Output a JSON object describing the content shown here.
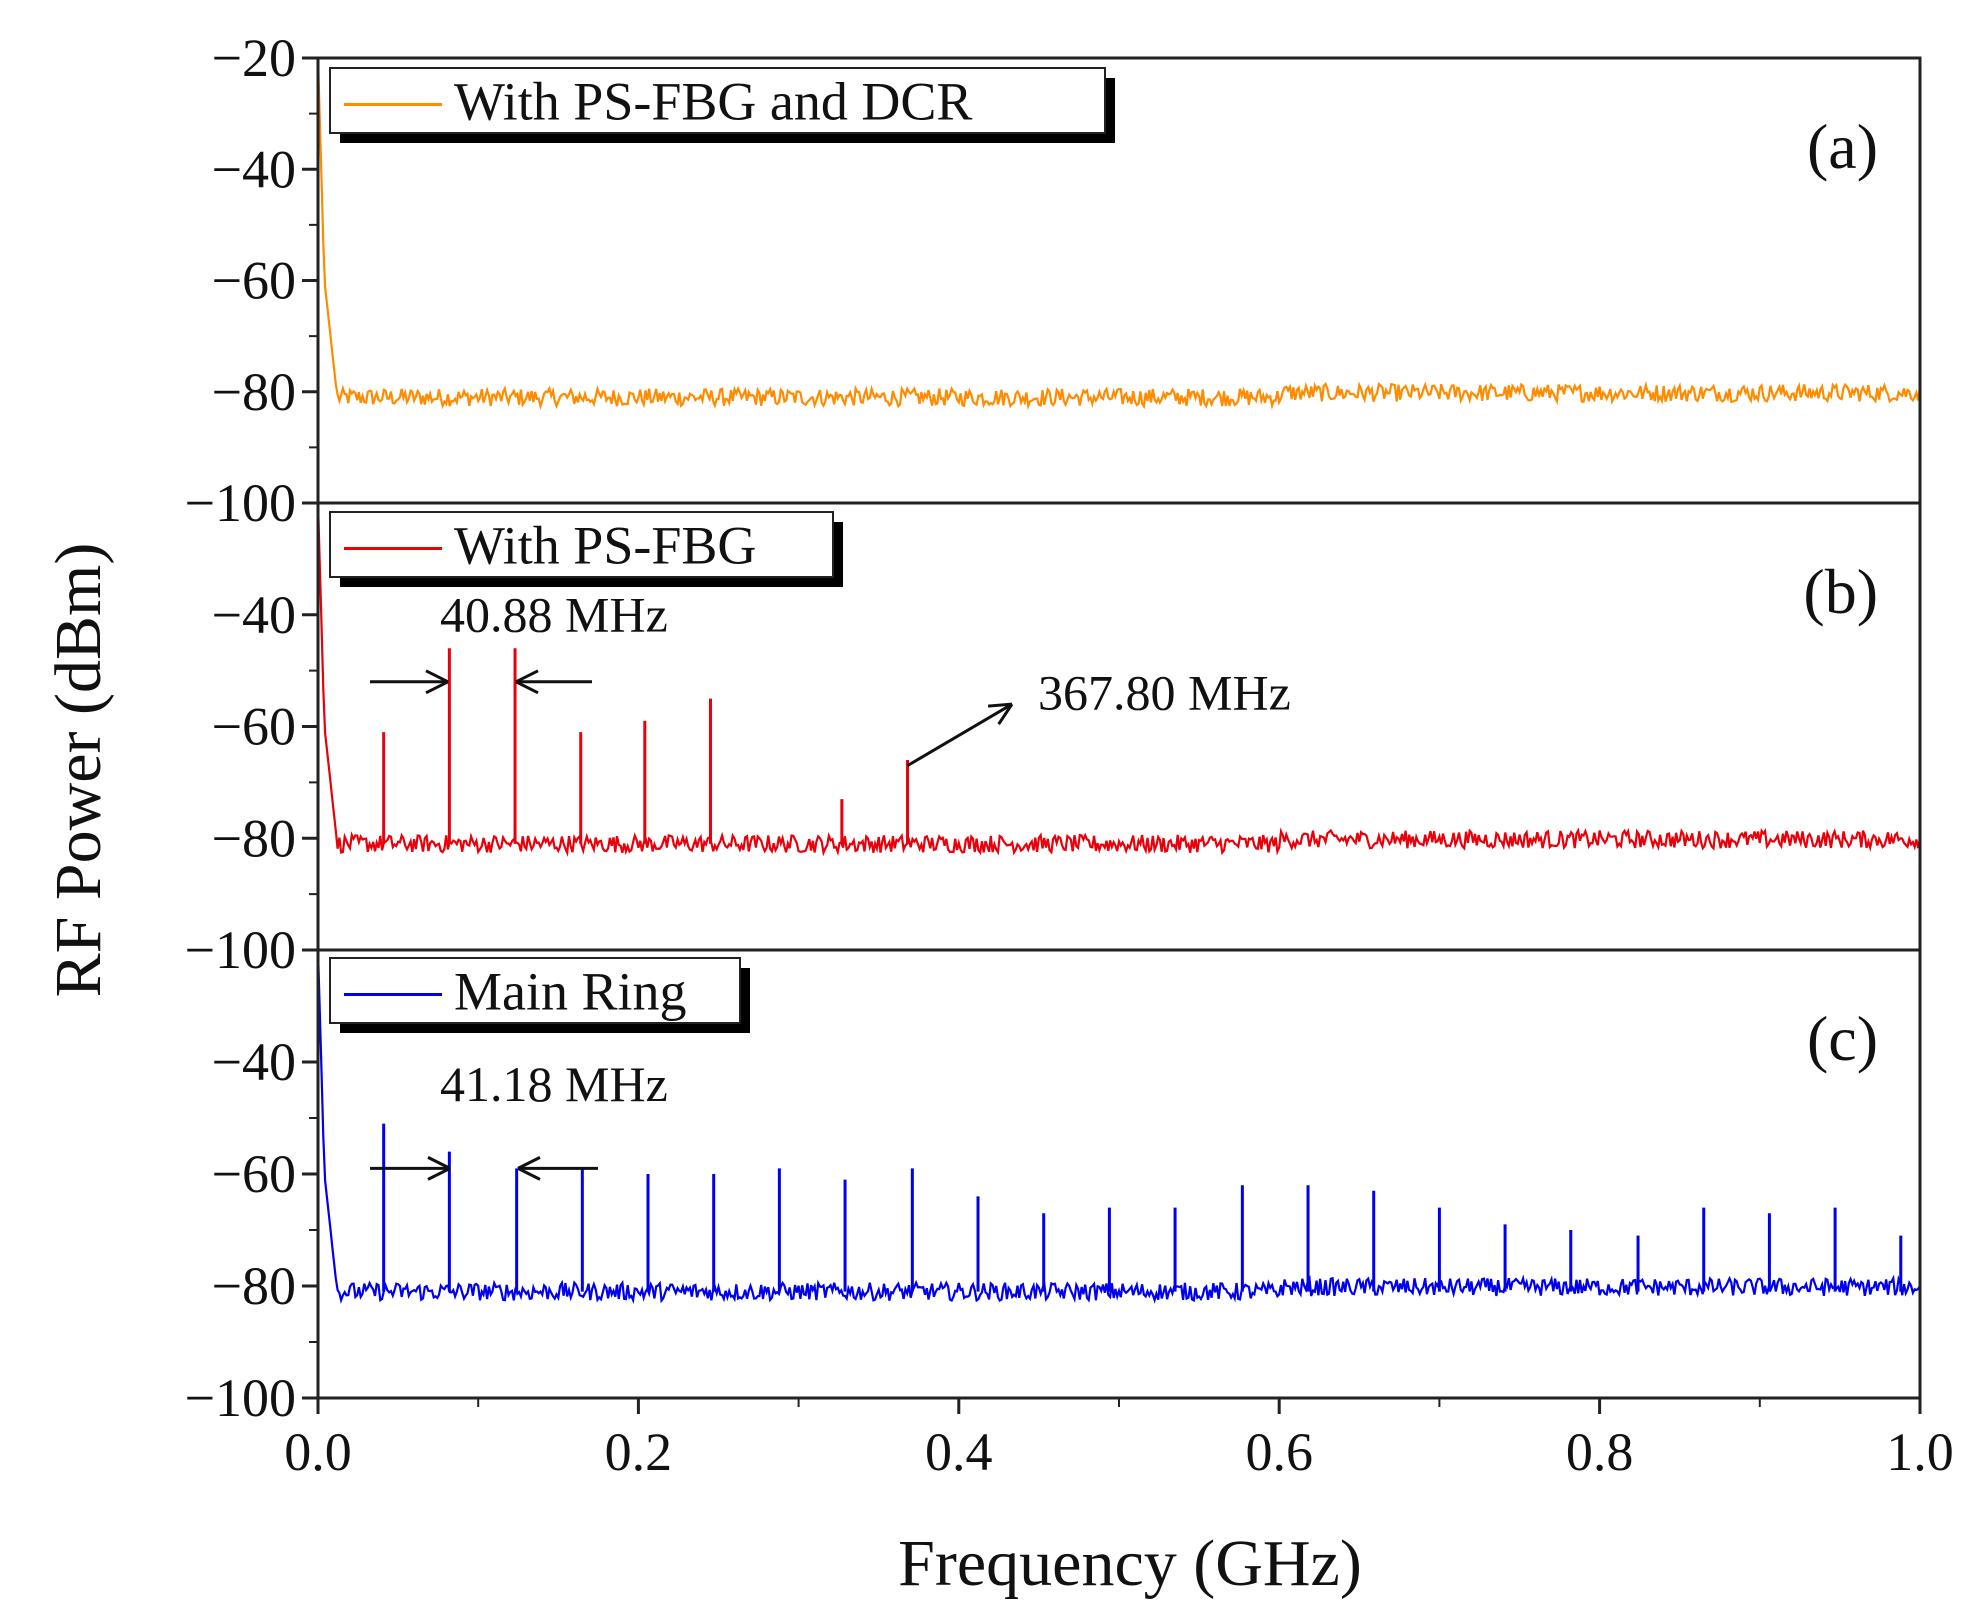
{
  "chart_data": {
    "type": "line",
    "xlabel": "Frequency (GHz)",
    "ylabel": "RF Power (dBm)",
    "xlim": [
      0,
      1.0
    ],
    "x_ticks": [
      "0.0",
      "0.2",
      "0.4",
      "0.6",
      "0.8",
      "1.0"
    ],
    "panels": [
      {
        "tag": "(a)",
        "ylim": [
          -100,
          -20
        ],
        "y_ticks": [
          "−20",
          "−40",
          "−60",
          "−80",
          "−100"
        ],
        "y_tick_values": [
          -20,
          -40,
          -60,
          -80,
          -100
        ],
        "series": [
          {
            "name": "With PS-FBG and DCR",
            "color": "#ff8c00",
            "noise_floor": -81,
            "peaks": []
          }
        ],
        "annotations": []
      },
      {
        "tag": "(b)",
        "ylim": [
          -100,
          -20
        ],
        "y_ticks": [
          "−40",
          "−60",
          "−80",
          "−100"
        ],
        "y_tick_values": [
          -40,
          -60,
          -80,
          -100
        ],
        "series": [
          {
            "name": "With PS-FBG",
            "color": "#e8000b",
            "noise_floor": -81,
            "peaks": [
              {
                "x": 0.041,
                "y": -61
              },
              {
                "x": 0.082,
                "y": -46
              },
              {
                "x": 0.123,
                "y": -46
              },
              {
                "x": 0.164,
                "y": -61
              },
              {
                "x": 0.204,
                "y": -59
              },
              {
                "x": 0.245,
                "y": -55
              },
              {
                "x": 0.327,
                "y": -73
              },
              {
                "x": 0.368,
                "y": -66
              }
            ]
          }
        ],
        "annotations": [
          {
            "text": "40.88 MHz"
          },
          {
            "text": "367.80 MHz"
          }
        ]
      },
      {
        "tag": "(c)",
        "ylim": [
          -100,
          -20
        ],
        "y_ticks": [
          "−40",
          "−60",
          "−80",
          "−100"
        ],
        "y_tick_values": [
          -40,
          -60,
          -80,
          -100
        ],
        "series": [
          {
            "name": "Main Ring",
            "color": "#0000ee",
            "noise_floor": -81,
            "peaks": [
              {
                "x": 0.041,
                "y": -51
              },
              {
                "x": 0.082,
                "y": -56
              },
              {
                "x": 0.124,
                "y": -59
              },
              {
                "x": 0.165,
                "y": -59
              },
              {
                "x": 0.206,
                "y": -60
              },
              {
                "x": 0.247,
                "y": -60
              },
              {
                "x": 0.288,
                "y": -59
              },
              {
                "x": 0.329,
                "y": -61
              },
              {
                "x": 0.371,
                "y": -59
              },
              {
                "x": 0.412,
                "y": -64
              },
              {
                "x": 0.453,
                "y": -67
              },
              {
                "x": 0.494,
                "y": -66
              },
              {
                "x": 0.535,
                "y": -66
              },
              {
                "x": 0.577,
                "y": -62
              },
              {
                "x": 0.618,
                "y": -62
              },
              {
                "x": 0.659,
                "y": -63
              },
              {
                "x": 0.7,
                "y": -66
              },
              {
                "x": 0.741,
                "y": -69
              },
              {
                "x": 0.782,
                "y": -70
              },
              {
                "x": 0.824,
                "y": -71
              },
              {
                "x": 0.865,
                "y": -66
              },
              {
                "x": 0.906,
                "y": -67
              },
              {
                "x": 0.947,
                "y": -66
              },
              {
                "x": 0.988,
                "y": -71
              }
            ]
          }
        ],
        "annotations": [
          {
            "text": "41.18 MHz"
          }
        ]
      }
    ],
    "grid": false,
    "legend_position": "top-left"
  }
}
